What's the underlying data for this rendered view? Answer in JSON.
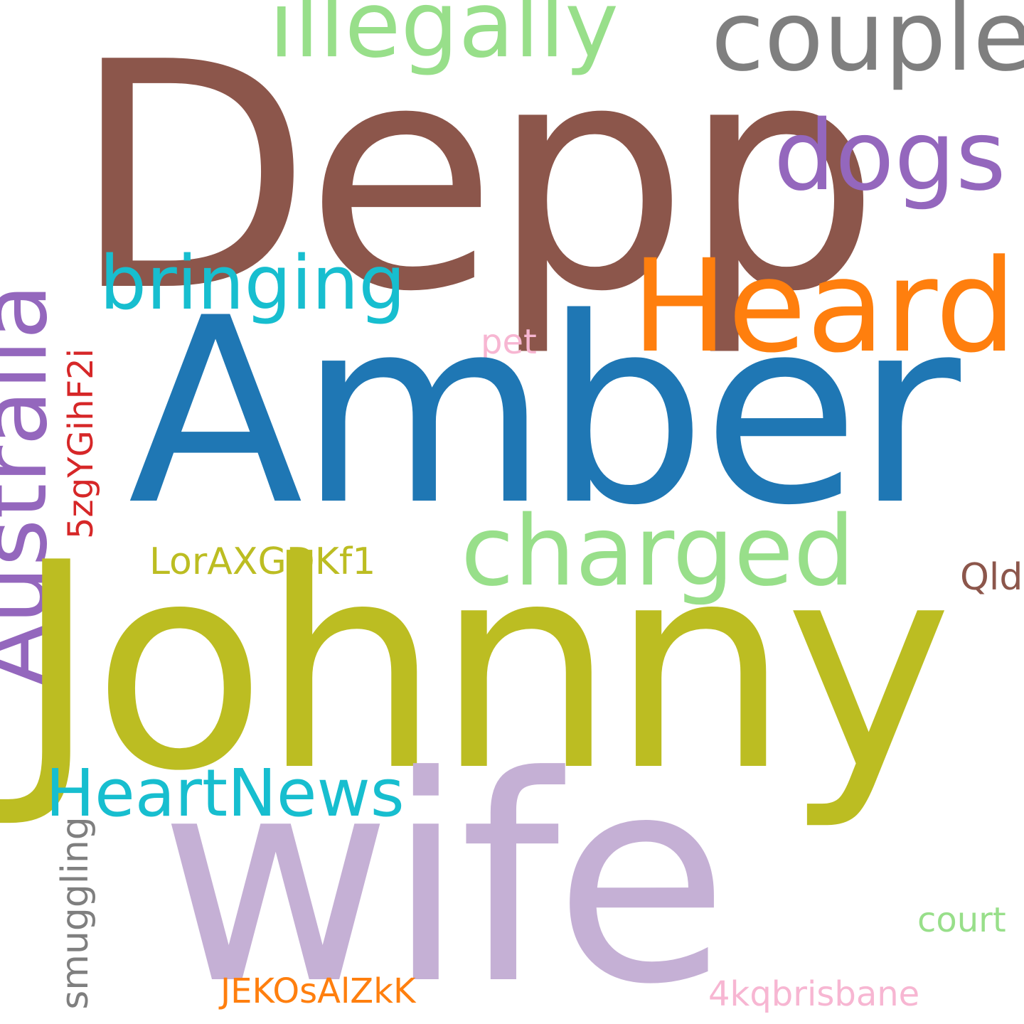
{
  "words": {
    "depp": {
      "text": "Depp",
      "color": "#8c564b"
    },
    "amber": {
      "text": "Amber",
      "color": "#1f77b4"
    },
    "johnny": {
      "text": "Johnny",
      "color": "#bcbd22"
    },
    "wife": {
      "text": "wife",
      "color": "#c5b0d5"
    },
    "heard": {
      "text": "Heard",
      "color": "#ff7f0e"
    },
    "australia": {
      "text": "Australia",
      "color": "#9467bd"
    },
    "illegally": {
      "text": "illegally",
      "color": "#98df8a"
    },
    "couple": {
      "text": "couple",
      "color": "#7f7f7f"
    },
    "dogs": {
      "text": "dogs",
      "color": "#9467bd"
    },
    "charged": {
      "text": "charged",
      "color": "#98df8a"
    },
    "bringing": {
      "text": "bringing",
      "color": "#17becf"
    },
    "heartnews": {
      "text": "HeartNews",
      "color": "#17becf"
    },
    "smuggling": {
      "text": "smuggling",
      "color": "#7f7f7f"
    },
    "pet": {
      "text": "pet",
      "color": "#f7b6d2"
    },
    "code_5zg": {
      "text": "5zgYGihF2i",
      "color": "#d62728"
    },
    "code_lor": {
      "text": "LorAXGDKf1",
      "color": "#bcbd22"
    },
    "qld": {
      "text": "Qld",
      "color": "#8c564b"
    },
    "court": {
      "text": "court",
      "color": "#98df8a"
    },
    "code_jek": {
      "text": "JEKOsAlZkK",
      "color": "#ff7f0e"
    },
    "brisbane": {
      "text": "4kqbrisbane",
      "color": "#f7b6d2"
    }
  }
}
